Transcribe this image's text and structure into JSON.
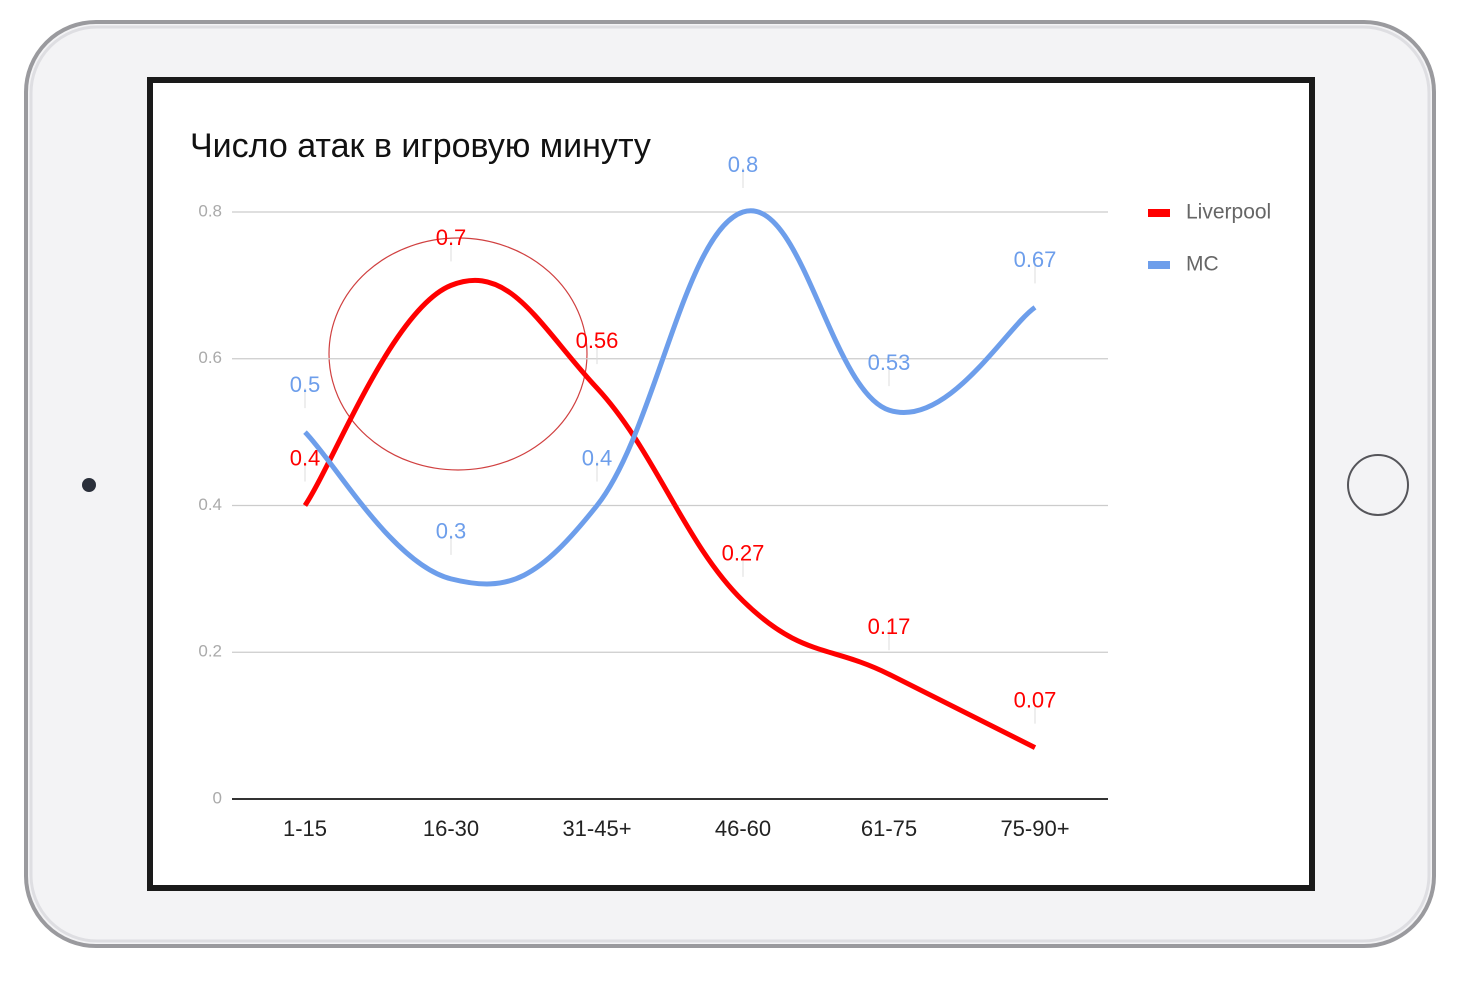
{
  "chart_data": {
    "type": "line",
    "title": "Число атак в игровую минуту",
    "categories": [
      "1-15",
      "16-30",
      "31-45+",
      "46-60",
      "61-75",
      "75-90+"
    ],
    "series": [
      {
        "name": "Liverpool",
        "color": "#ff0000",
        "values": [
          0.4,
          0.7,
          0.56,
          0.27,
          0.17,
          0.07
        ]
      },
      {
        "name": "MC",
        "color": "#6d9eeb",
        "values": [
          0.5,
          0.3,
          0.4,
          0.8,
          0.53,
          0.67
        ]
      }
    ],
    "ylim": [
      0,
      0.8
    ],
    "yticks": [
      0,
      0.2,
      0.4,
      0.6,
      0.8
    ],
    "grid": true,
    "legend": "right"
  }
}
